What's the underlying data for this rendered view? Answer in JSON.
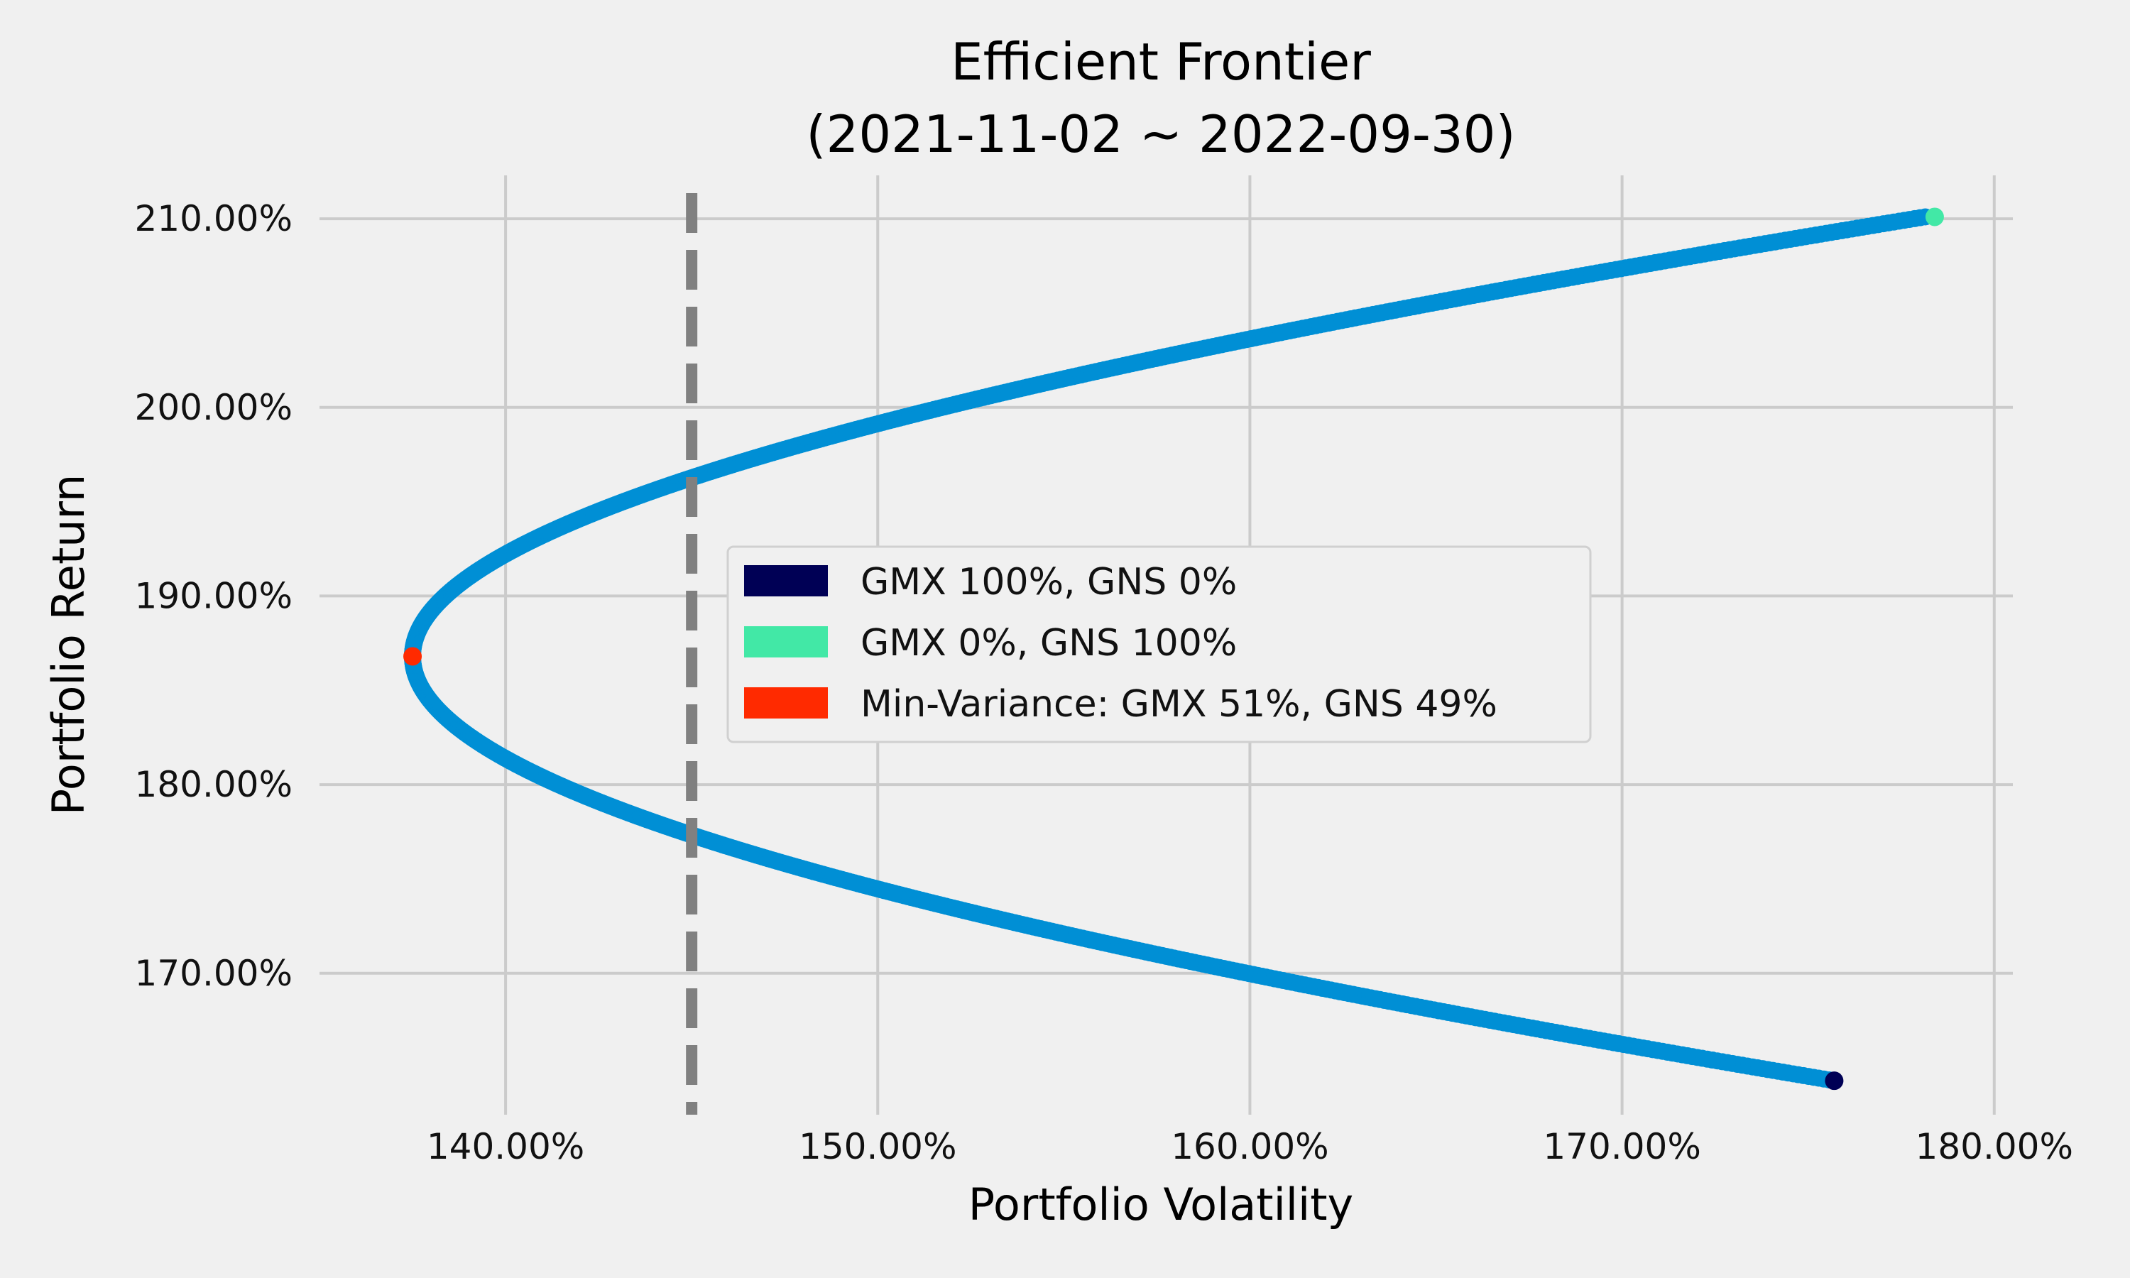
{
  "chart_data": {
    "type": "scatter",
    "title": "Efficient Frontier",
    "subtitle": "(2021-11-02 ~ 2022-09-30)",
    "xlabel": "Portfolio Volatility",
    "ylabel": "Portfolio Return",
    "xlim": [
      135.0,
      180.5
    ],
    "ylim": [
      162.5,
      212.3
    ],
    "x_ticks": [
      140,
      150,
      160,
      170,
      180
    ],
    "x_tick_labels": [
      "140.00%",
      "150.00%",
      "160.00%",
      "170.00%",
      "180.00%"
    ],
    "y_ticks": [
      170,
      180,
      190,
      200,
      210
    ],
    "y_tick_labels": [
      "170.00%",
      "180.00%",
      "190.00%",
      "200.00%",
      "210.00%"
    ],
    "grid": true,
    "reference_line": {
      "x": 145.0,
      "style": "dashed",
      "color": "#808080"
    },
    "frontier": {
      "color": "#008fd5",
      "gmx_return": 164.3,
      "gns_return": 210.1,
      "gmx_volatility": 175.7,
      "gns_volatility": 178.4,
      "min_variance_volatility": 137.5,
      "min_variance_return": 186.8
    },
    "highlight_points": [
      {
        "name": "GMX 100%, GNS 0%",
        "x": 175.7,
        "y": 164.3,
        "color": "#000055"
      },
      {
        "name": "GMX 0%, GNS 100%",
        "x": 178.4,
        "y": 210.1,
        "color": "#42e8a6"
      },
      {
        "name": "Min-Variance: GMX 51%, GNS 49%",
        "x": 137.5,
        "y": 186.8,
        "color": "#ff2a00"
      }
    ],
    "legend": {
      "position": "center",
      "entries": [
        {
          "label": "GMX 100%, GNS 0%",
          "color": "#000055"
        },
        {
          "label": "GMX 0%, GNS 100%",
          "color": "#42e8a6"
        },
        {
          "label": "Min-Variance: GMX 51%, GNS 49%",
          "color": "#ff2a00"
        }
      ]
    }
  }
}
